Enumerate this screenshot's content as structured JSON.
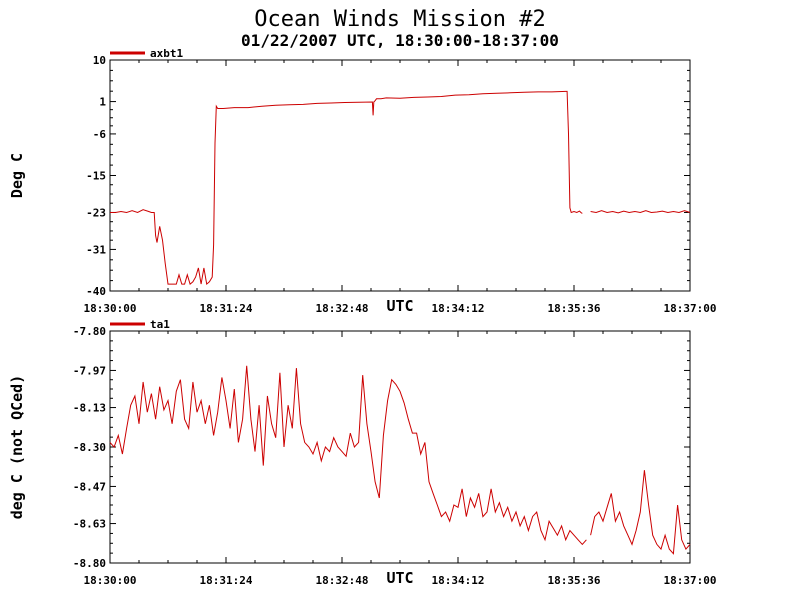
{
  "header": {
    "title": "Ocean Winds Mission #2",
    "subtitle": "01/22/2007  UTC, 18:30:00-18:37:00"
  },
  "chart_data": [
    {
      "type": "line",
      "legend": "axbt1",
      "ylabel": "Deg C",
      "xlabel": "UTC",
      "xlim": [
        0,
        420
      ],
      "ylim": [
        -40,
        10
      ],
      "yticks": [
        10,
        1,
        -6,
        -15,
        -23,
        -31,
        -40
      ],
      "ytick_labels": [
        "10",
        "1",
        "-6",
        "-15",
        "-23",
        "-31",
        "-40"
      ],
      "xtick_labels": [
        "18:30:00",
        "18:31:24",
        "18:32:48",
        "18:34:12",
        "18:35:36",
        "18:37:00"
      ],
      "xticks": [
        0,
        84,
        168,
        252,
        336,
        420
      ],
      "series": [
        {
          "name": "axbt1",
          "color": "#cc0000",
          "segments": [
            {
              "x": [
                0,
                4,
                8,
                12,
                16,
                20,
                24,
                28,
                30,
                32,
                33,
                34,
                36,
                38,
                40,
                42,
                44,
                46,
                48,
                50,
                52,
                54,
                56,
                58,
                60,
                62,
                64,
                66,
                68,
                70,
                72,
                74,
                75,
                76,
                77,
                78,
                82,
                90,
                100,
                110,
                120,
                130,
                140,
                150,
                160,
                170,
                190,
                190.5,
                191,
                192,
                193,
                194,
                196,
                200,
                210,
                220,
                230,
                240,
                250,
                260,
                270,
                280,
                290,
                300,
                310,
                320,
                330,
                331,
                332,
                333,
                334,
                336,
                338,
                340,
                341,
                342
              ],
              "y": [
                -23,
                -23,
                -22.8,
                -23,
                -22.6,
                -23,
                -22.4,
                -22.8,
                -23,
                -23,
                -28,
                -29.5,
                -26,
                -29,
                -34,
                -38.5,
                -38.5,
                -38.5,
                -38.5,
                -36.5,
                -38.5,
                -38.5,
                -36.5,
                -38.5,
                -38,
                -37,
                -35,
                -38.5,
                -35,
                -38.5,
                -38,
                -37,
                -30,
                -8,
                0,
                -0.5,
                -0.5,
                -0.3,
                -0.3,
                0,
                0.2,
                0.3,
                0.4,
                0.6,
                0.7,
                0.8,
                0.9,
                -2,
                0.9,
                1.2,
                1.6,
                1.6,
                1.6,
                1.8,
                1.7,
                1.9,
                2.0,
                2.1,
                2.4,
                2.5,
                2.7,
                2.8,
                2.9,
                3.0,
                3.1,
                3.1,
                3.2,
                3.2,
                -6,
                -22,
                -23,
                -22.8,
                -23,
                -22.7,
                -23,
                -23.2
              ]
            },
            {
              "x": [
                348,
                352,
                356,
                360,
                364,
                368,
                372,
                376,
                380,
                384,
                388,
                392,
                396,
                400,
                404,
                408,
                412,
                416,
                420
              ],
              "y": [
                -22.8,
                -23,
                -22.6,
                -23,
                -22.8,
                -23.1,
                -22.7,
                -23,
                -22.8,
                -23,
                -22.6,
                -23,
                -22.9,
                -22.7,
                -23,
                -22.8,
                -23,
                -22.6,
                -23
              ]
            }
          ]
        }
      ]
    },
    {
      "type": "line",
      "legend": "ta1",
      "ylabel": "deg C (not QCed)",
      "xlabel": "UTC",
      "xlim": [
        0,
        420
      ],
      "ylim": [
        -8.8,
        -7.8
      ],
      "yticks": [
        -7.8,
        -7.97,
        -8.13,
        -8.3,
        -8.47,
        -8.63,
        -8.8
      ],
      "ytick_labels": [
        "-7.80",
        "-7.97",
        "-8.13",
        "-8.30",
        "-8.47",
        "-8.63",
        "-8.80"
      ],
      "xtick_labels": [
        "18:30:00",
        "18:31:24",
        "18:32:48",
        "18:34:12",
        "18:35:36",
        "18:37:00"
      ],
      "xticks": [
        0,
        84,
        168,
        252,
        336,
        420
      ],
      "series": [
        {
          "name": "ta1",
          "color": "#cc0000",
          "segments": [
            {
              "x": [
                0,
                3,
                6,
                9,
                12,
                15,
                18,
                21,
                24,
                27,
                30,
                33,
                36,
                39,
                42,
                45,
                48,
                51,
                54,
                57,
                60,
                63,
                66,
                69,
                72,
                75,
                78,
                81,
                84,
                87,
                90,
                93,
                96,
                99,
                102,
                105,
                108,
                111,
                114,
                117,
                120,
                123,
                126,
                129,
                132,
                135,
                138,
                141,
                144,
                147,
                150,
                153,
                156,
                159,
                162,
                165,
                168,
                171,
                174,
                177,
                180,
                183,
                186,
                189,
                192,
                195,
                198,
                201,
                204,
                207,
                210,
                213,
                216,
                219,
                222,
                225,
                228,
                231,
                234,
                237,
                240,
                243,
                246,
                249,
                252,
                255,
                258,
                261,
                264,
                267,
                270,
                273,
                276,
                279,
                282,
                285,
                288,
                291,
                294,
                297,
                300,
                303,
                306,
                309,
                312,
                315,
                318,
                321,
                324,
                327,
                330,
                333,
                336,
                339,
                342,
                345
              ],
              "y": [
                -8.28,
                -8.3,
                -8.25,
                -8.33,
                -8.22,
                -8.12,
                -8.08,
                -8.2,
                -8.02,
                -8.15,
                -8.07,
                -8.18,
                -8.04,
                -8.14,
                -8.1,
                -8.2,
                -8.06,
                -8.01,
                -8.18,
                -8.22,
                -8.02,
                -8.15,
                -8.1,
                -8.2,
                -8.12,
                -8.25,
                -8.15,
                -8.0,
                -8.1,
                -8.22,
                -8.05,
                -8.28,
                -8.18,
                -7.95,
                -8.18,
                -8.32,
                -8.12,
                -8.38,
                -8.08,
                -8.2,
                -8.26,
                -7.98,
                -8.3,
                -8.12,
                -8.22,
                -7.96,
                -8.2,
                -8.28,
                -8.3,
                -8.33,
                -8.28,
                -8.36,
                -8.3,
                -8.32,
                -8.26,
                -8.3,
                -8.32,
                -8.34,
                -8.24,
                -8.3,
                -8.28,
                -7.99,
                -8.2,
                -8.32,
                -8.45,
                -8.52,
                -8.25,
                -8.1,
                -8.01,
                -8.03,
                -8.06,
                -8.11,
                -8.18,
                -8.24,
                -8.24,
                -8.33,
                -8.28,
                -8.45,
                -8.5,
                -8.55,
                -8.6,
                -8.58,
                -8.62,
                -8.55,
                -8.56,
                -8.48,
                -8.6,
                -8.52,
                -8.56,
                -8.5,
                -8.6,
                -8.58,
                -8.48,
                -8.58,
                -8.54,
                -8.6,
                -8.56,
                -8.62,
                -8.58,
                -8.64,
                -8.6,
                -8.66,
                -8.6,
                -8.58,
                -8.66,
                -8.7,
                -8.62,
                -8.65,
                -8.68,
                -8.64,
                -8.7,
                -8.66,
                -8.68,
                -8.7,
                -8.72,
                -8.7
              ]
            },
            {
              "x": [
                348,
                351,
                354,
                357,
                360,
                363,
                366,
                369,
                372,
                375,
                378,
                381,
                384,
                387,
                390,
                393,
                396,
                399,
                402,
                405,
                408,
                411,
                414,
                417,
                420
              ],
              "y": [
                -8.68,
                -8.6,
                -8.58,
                -8.62,
                -8.56,
                -8.5,
                -8.62,
                -8.58,
                -8.64,
                -8.68,
                -8.72,
                -8.66,
                -8.58,
                -8.4,
                -8.55,
                -8.68,
                -8.72,
                -8.74,
                -8.68,
                -8.74,
                -8.76,
                -8.55,
                -8.7,
                -8.74,
                -8.72
              ]
            }
          ]
        }
      ]
    }
  ]
}
